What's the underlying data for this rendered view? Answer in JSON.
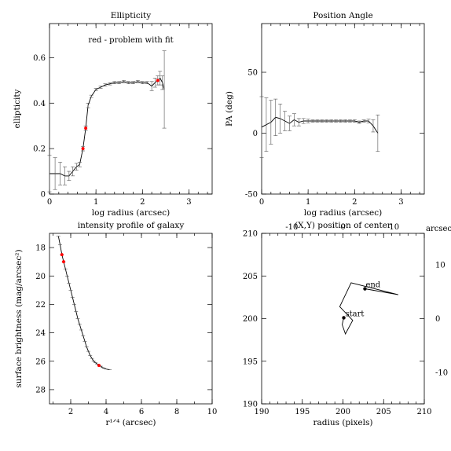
{
  "chart_data": [
    {
      "id": "ellipticity",
      "type": "line",
      "title": "Ellipticity",
      "annotation": "red - problem with fit",
      "annotation_color": "#ff0000",
      "xlabel": "log radius (arcsec)",
      "ylabel": "ellipticity",
      "xlim": [
        0,
        3.5
      ],
      "ylim": [
        0,
        0.75
      ],
      "xticks": [
        "0",
        "1",
        "2",
        "3"
      ],
      "yticks": [
        "0",
        "0.2",
        "0.4",
        "0.6"
      ],
      "series": [
        {
          "x": [
            0.0,
            0.12,
            0.23,
            0.33,
            0.42,
            0.5,
            0.58,
            0.65,
            0.72,
            0.78,
            0.83,
            0.9,
            1.0,
            1.1,
            1.2,
            1.3,
            1.4,
            1.5,
            1.6,
            1.7,
            1.8,
            1.9,
            2.0,
            2.1,
            2.2,
            2.27,
            2.33,
            2.38,
            2.43,
            2.47
          ],
          "y": [
            0.09,
            0.09,
            0.09,
            0.08,
            0.08,
            0.1,
            0.12,
            0.13,
            0.2,
            0.29,
            0.39,
            0.43,
            0.46,
            0.47,
            0.48,
            0.485,
            0.49,
            0.49,
            0.495,
            0.49,
            0.49,
            0.495,
            0.49,
            0.49,
            0.475,
            0.49,
            0.5,
            0.51,
            0.49,
            0.46
          ],
          "err": [
            0.08,
            0.07,
            0.05,
            0.04,
            0.02,
            0.02,
            0.015,
            0.01,
            0.01,
            0.01,
            0.01,
            0.005,
            0.005,
            0.005,
            0.005,
            0.005,
            0.005,
            0.005,
            0.005,
            0.005,
            0.005,
            0.005,
            0.005,
            0.005,
            0.02,
            0.02,
            0.02,
            0.03,
            0.03,
            0.17
          ],
          "flagged": [
            0.72,
            0.78,
            2.33
          ]
        }
      ]
    },
    {
      "id": "position_angle",
      "type": "line",
      "title": "Position Angle",
      "xlabel": "log radius (arcsec)",
      "ylabel": "PA (deg)",
      "xlim": [
        0,
        3.5
      ],
      "ylim": [
        -50,
        90
      ],
      "xticks": [
        "0",
        "1",
        "2",
        "3"
      ],
      "yticks": [
        "-50",
        "0",
        "50"
      ],
      "series": [
        {
          "x": [
            0.0,
            0.1,
            0.2,
            0.3,
            0.4,
            0.5,
            0.6,
            0.7,
            0.8,
            0.9,
            1.0,
            1.1,
            1.2,
            1.3,
            1.4,
            1.5,
            1.6,
            1.7,
            1.8,
            1.9,
            2.0,
            2.1,
            2.2,
            2.3,
            2.4,
            2.5
          ],
          "y": [
            5,
            7,
            9,
            13,
            12,
            10,
            8,
            11,
            9,
            10,
            10,
            10,
            10,
            10,
            10,
            10,
            10,
            10,
            10,
            10,
            10,
            9,
            10,
            10,
            6,
            0
          ],
          "err": [
            25,
            22,
            18,
            15,
            12,
            8,
            6,
            5,
            3,
            2,
            1.5,
            1,
            1,
            1,
            1,
            1,
            1,
            1,
            1,
            1,
            1,
            1,
            1,
            1.5,
            5,
            15
          ]
        }
      ]
    },
    {
      "id": "intensity_profile",
      "type": "line",
      "title": "intensity profile of galaxy",
      "xlabel": "r¹ᐟ⁴ (arcsec)",
      "ylabel": "surface brightness (mag/arcsec²)",
      "xlim": [
        0.8,
        10
      ],
      "ylim": [
        29,
        17
      ],
      "y_inverted": true,
      "xticks": [
        "2",
        "4",
        "6",
        "8",
        "10"
      ],
      "yticks": [
        "18",
        "20",
        "22",
        "24",
        "26",
        "28"
      ],
      "series": [
        {
          "x": [
            1.3,
            1.4,
            1.5,
            1.6,
            1.7,
            1.8,
            1.9,
            2.0,
            2.1,
            2.2,
            2.3,
            2.4,
            2.5,
            2.6,
            2.7,
            2.8,
            2.9,
            3.0,
            3.1,
            3.2,
            3.3,
            3.4,
            3.5,
            3.6,
            3.7,
            3.8,
            3.9,
            4.0,
            4.2
          ],
          "y": [
            17.2,
            17.8,
            18.5,
            19.0,
            19.5,
            20.0,
            20.5,
            21.0,
            21.5,
            22.0,
            22.5,
            23.0,
            23.4,
            23.8,
            24.2,
            24.6,
            25.0,
            25.3,
            25.6,
            25.8,
            26.0,
            26.1,
            26.2,
            26.3,
            26.35,
            26.45,
            26.5,
            26.55,
            26.6
          ],
          "flagged": [
            1.5,
            1.6,
            3.6
          ]
        }
      ]
    },
    {
      "id": "center_position",
      "type": "line",
      "title": "(X,Y) position of center",
      "xlabel": "radius (pixels)",
      "top_axis_label": "arcsec",
      "xlim": [
        190,
        210
      ],
      "ylim": [
        190,
        210
      ],
      "xticks": [
        "190",
        "195",
        "200",
        "205",
        "210"
      ],
      "yticks": [
        "190",
        "195",
        "200",
        "205",
        "210"
      ],
      "top_ticks": [
        "-10",
        "0",
        "10"
      ],
      "right_ticks": [
        "10",
        "0",
        "-10"
      ],
      "start_label": "start",
      "end_label": "end",
      "series": [
        {
          "x": [
            200.1,
            199.9,
            200.3,
            201.2,
            199.6,
            201.0,
            206.8,
            202.7
          ],
          "y": [
            200.1,
            199.3,
            198.2,
            199.8,
            201.4,
            204.2,
            202.8,
            203.5
          ],
          "flagged": [
            200.1
          ]
        }
      ]
    }
  ]
}
